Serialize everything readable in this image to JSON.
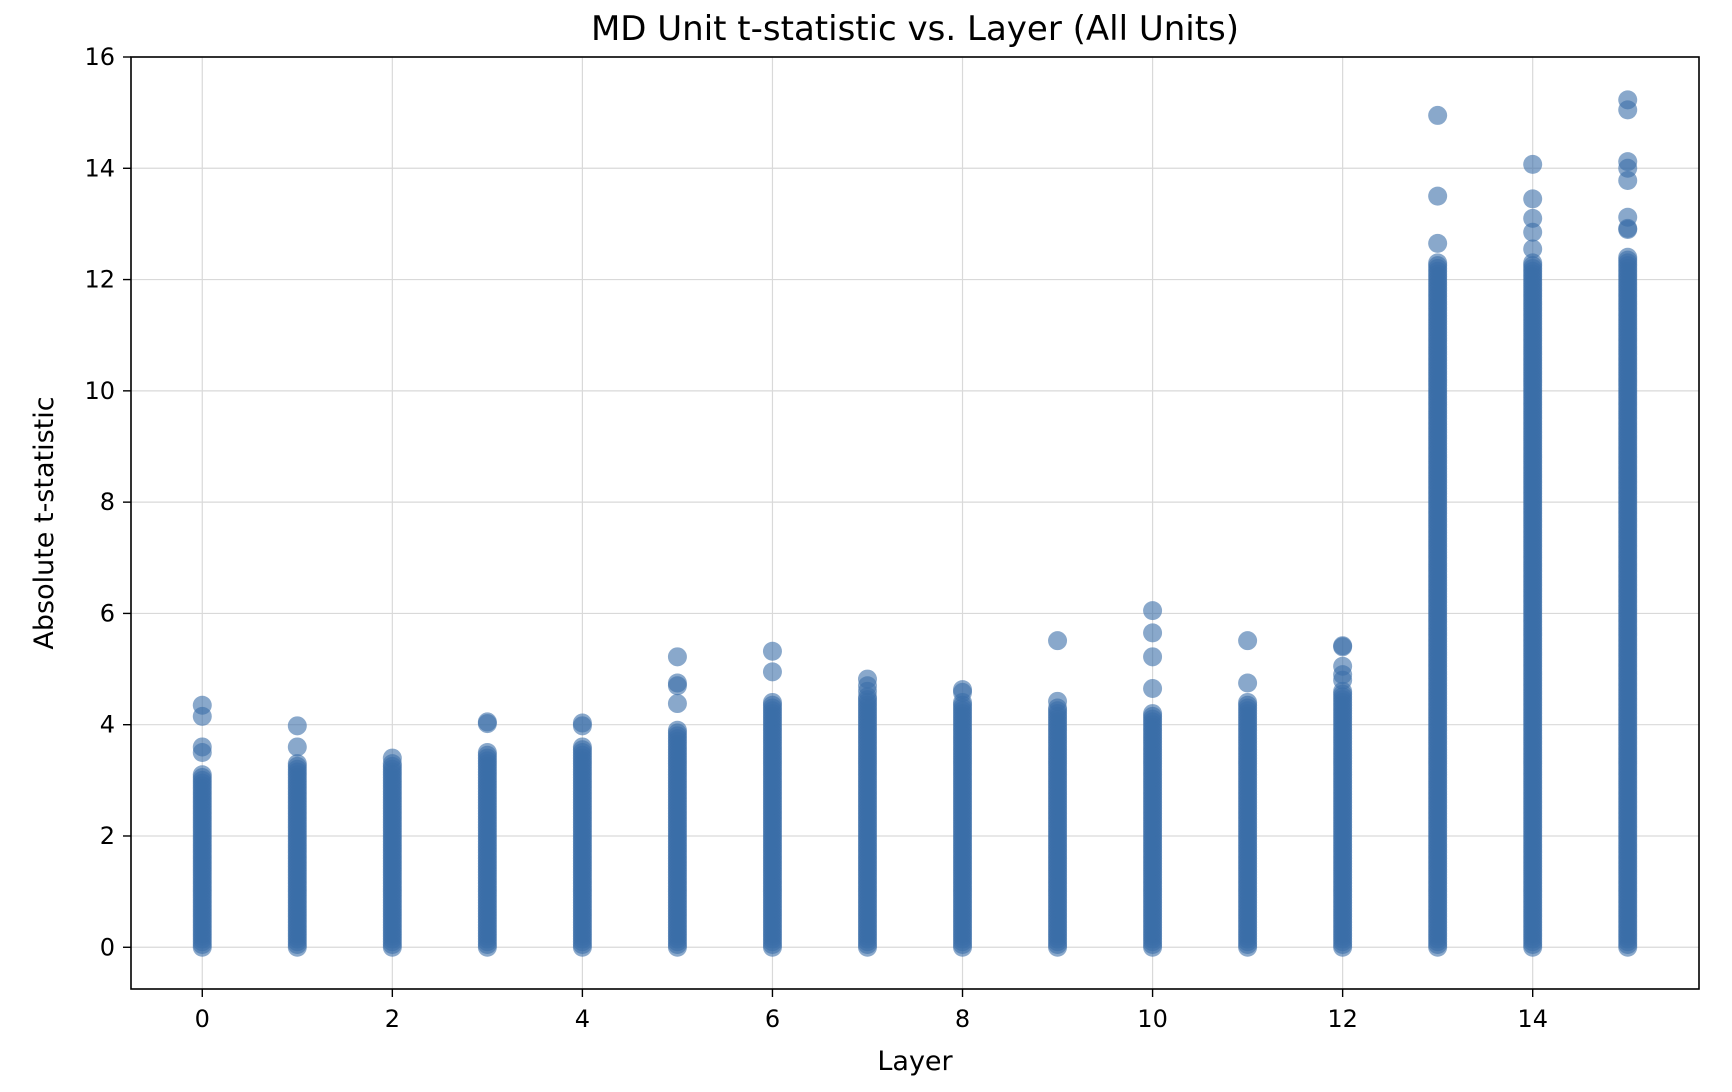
{
  "chart_data": {
    "type": "scatter",
    "title": "MD Unit t-statistic vs. Layer (All Units)",
    "xlabel": "Layer",
    "ylabel": "Absolute t-statistic",
    "xlim": [
      -0.75,
      15.75
    ],
    "ylim": [
      -0.75,
      16
    ],
    "xticks": [
      0,
      2,
      4,
      6,
      8,
      10,
      12,
      14
    ],
    "yticks": [
      0,
      2,
      4,
      6,
      8,
      10,
      12,
      14,
      16
    ],
    "grid": true,
    "marker_color": "#3a6ea8",
    "marker_opacity": 0.6,
    "series": [
      {
        "layers": [
          0,
          1,
          2,
          3,
          4,
          5,
          6,
          7,
          8,
          9,
          10,
          11,
          12,
          13,
          14,
          15
        ],
        "max_dense": [
          3.1,
          3.3,
          3.3,
          3.5,
          3.6,
          3.9,
          4.4,
          4.5,
          4.4,
          4.3,
          4.2,
          4.4,
          4.6,
          12.3,
          12.3,
          12.4
        ],
        "outliers": [
          [
            4.15,
            4.35,
            3.6,
            3.5
          ],
          [
            3.98,
            3.6
          ],
          [
            3.4
          ],
          [
            4.05,
            4.02
          ],
          [
            4.03,
            3.98
          ],
          [
            5.22,
            4.75,
            4.7,
            4.38
          ],
          [
            5.32,
            4.95
          ],
          [
            4.82,
            4.7,
            4.6
          ],
          [
            4.63,
            4.58
          ],
          [
            5.51,
            4.42
          ],
          [
            6.05,
            5.65,
            5.22,
            4.65
          ],
          [
            5.51,
            4.75
          ],
          [
            5.42,
            5.4,
            5.05,
            4.9,
            4.8
          ],
          [
            14.95,
            13.5,
            12.65
          ],
          [
            14.07,
            13.45,
            13.1,
            12.85,
            12.55
          ],
          [
            15.23,
            15.05,
            14.12,
            14.0,
            13.78,
            13.12,
            12.92,
            12.9
          ]
        ]
      }
    ]
  }
}
